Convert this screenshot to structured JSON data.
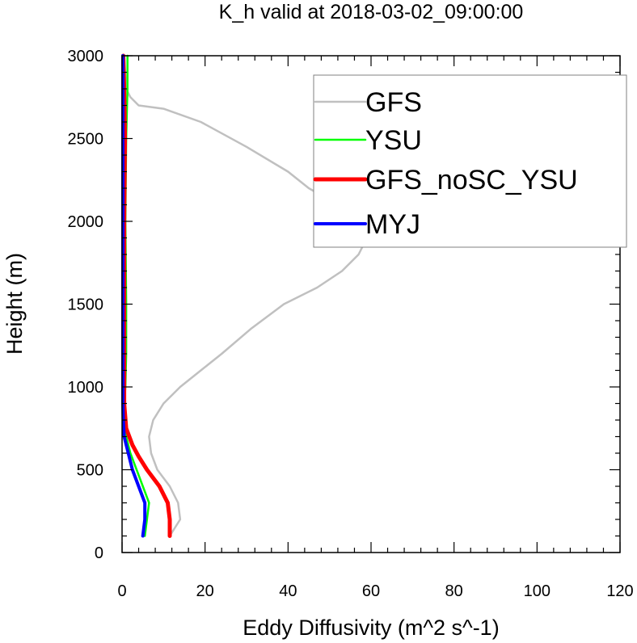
{
  "chart_data": {
    "type": "line",
    "title": "K_h valid at 2018-03-02_09:00:00",
    "xlabel": "Eddy Diffusivity (m^2 s^-1)",
    "ylabel": "Height (m)",
    "xlim": [
      0,
      120
    ],
    "ylim": [
      0,
      3000
    ],
    "xticks": [
      0,
      20,
      40,
      60,
      80,
      100,
      120
    ],
    "yticks": [
      0,
      500,
      1000,
      1500,
      2000,
      2500,
      3000
    ],
    "xtick_labels": [
      "0",
      "20",
      "40",
      "60",
      "80",
      "100",
      "120"
    ],
    "ytick_labels": [
      "0",
      "500",
      "1000",
      "1500",
      "2000",
      "2500",
      "3000"
    ],
    "grid": false,
    "legend_position": "top-right",
    "series": [
      {
        "name": "GFS",
        "color": "#c0c0c0",
        "points": [
          [
            11.5,
            100
          ],
          [
            14,
            200
          ],
          [
            13.5,
            300
          ],
          [
            11.5,
            400
          ],
          [
            8.5,
            500
          ],
          [
            7,
            600
          ],
          [
            6.5,
            700
          ],
          [
            7.5,
            800
          ],
          [
            10,
            900
          ],
          [
            14,
            1000
          ],
          [
            19,
            1100
          ],
          [
            24,
            1200
          ],
          [
            31,
            1350
          ],
          [
            39,
            1500
          ],
          [
            47,
            1600
          ],
          [
            53,
            1700
          ],
          [
            57,
            1800
          ],
          [
            59,
            1900
          ],
          [
            57,
            1980
          ],
          [
            52,
            2100
          ],
          [
            45,
            2200
          ],
          [
            40,
            2300
          ],
          [
            30,
            2450
          ],
          [
            19,
            2600
          ],
          [
            10,
            2680
          ],
          [
            4,
            2700
          ],
          [
            2,
            2750
          ],
          [
            1,
            2800
          ],
          [
            0.5,
            3000
          ]
        ]
      },
      {
        "name": "YSU",
        "color": "#00ff00",
        "points": [
          [
            5.5,
            100
          ],
          [
            6,
            200
          ],
          [
            6.5,
            300
          ],
          [
            5,
            400
          ],
          [
            3.5,
            500
          ],
          [
            2,
            600
          ],
          [
            1,
            700
          ],
          [
            0.5,
            800
          ],
          [
            0.5,
            900
          ],
          [
            0.8,
            1000
          ],
          [
            1,
            1200
          ],
          [
            1,
            1500
          ],
          [
            0.8,
            2000
          ],
          [
            1,
            2500
          ],
          [
            1.3,
            2800
          ],
          [
            1.3,
            3000
          ]
        ]
      },
      {
        "name": "GFS_noSC_YSU",
        "color": "#ff0000",
        "points": [
          [
            11.5,
            100
          ],
          [
            11.5,
            200
          ],
          [
            11,
            300
          ],
          [
            9,
            400
          ],
          [
            6,
            500
          ],
          [
            4,
            580
          ],
          [
            2.5,
            650
          ],
          [
            1,
            750
          ],
          [
            0.5,
            900
          ],
          [
            0.5,
            1000
          ],
          [
            0.5,
            1500
          ],
          [
            0.5,
            2000
          ],
          [
            0.7,
            2500
          ],
          [
            0.5,
            2800
          ],
          [
            0.3,
            3000
          ]
        ]
      },
      {
        "name": "MYJ",
        "color": "#0000ff",
        "points": [
          [
            5,
            100
          ],
          [
            5.5,
            200
          ],
          [
            5.5,
            300
          ],
          [
            4,
            400
          ],
          [
            2.5,
            500
          ],
          [
            1.5,
            600
          ],
          [
            0.5,
            700
          ],
          [
            0.3,
            800
          ],
          [
            0.2,
            900
          ],
          [
            0.2,
            1000
          ],
          [
            0.2,
            1500
          ],
          [
            0.2,
            2000
          ],
          [
            0.2,
            2500
          ],
          [
            0.2,
            3000
          ]
        ]
      }
    ]
  }
}
